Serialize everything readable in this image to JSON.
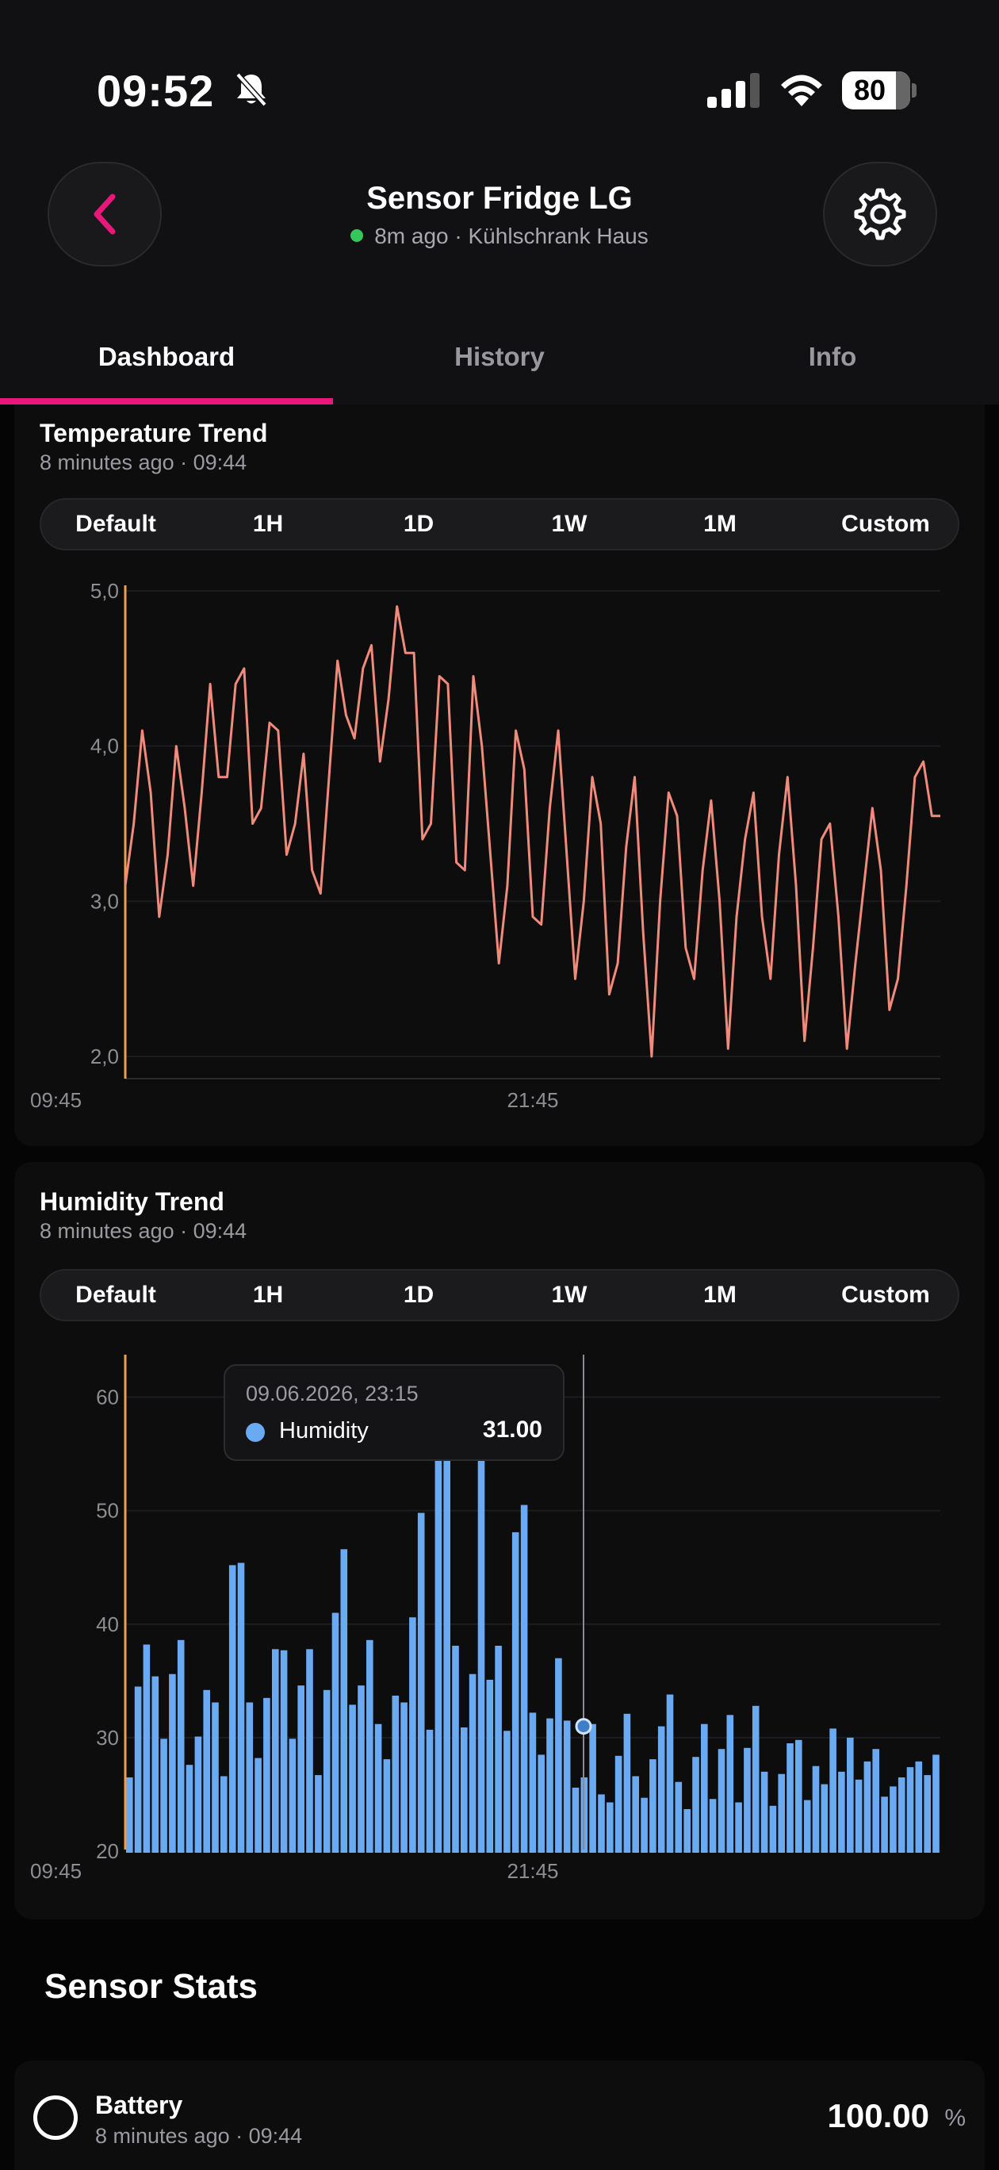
{
  "status_bar": {
    "time": "09:52",
    "battery": "80"
  },
  "header": {
    "title": "Sensor Fridge LG",
    "subtitle": "8m ago · Kühlschrank Haus",
    "online_color": "#35c75a"
  },
  "tabs": [
    {
      "label": "Dashboard",
      "active": true
    },
    {
      "label": "History",
      "active": false
    },
    {
      "label": "Info",
      "active": false
    }
  ],
  "range_options": [
    "Default",
    "1H",
    "1D",
    "1W",
    "1M",
    "Custom"
  ],
  "temperature": {
    "title": "Temperature Trend",
    "subtitle": "8 minutes ago · 09:44"
  },
  "humidity": {
    "title": "Humidity Trend",
    "subtitle": "8 minutes ago · 09:44",
    "tooltip": {
      "date": "09.06.2026, 23:15",
      "series": "Humidity",
      "value": "31.00"
    }
  },
  "stats": {
    "section_title": "Sensor Stats",
    "battery": {
      "label": "Battery",
      "subtitle": "8 minutes ago · 09:44",
      "value": "100.00",
      "unit": "%"
    }
  },
  "chart_data": [
    {
      "type": "line",
      "color": "#f08a7a",
      "yticks": [
        "5,0",
        "4,0",
        "3,0",
        "2,0"
      ],
      "ylim": [
        2.0,
        5.0
      ],
      "xticks": [
        "09:45",
        "21:45"
      ],
      "values": [
        3.1,
        3.5,
        4.1,
        3.7,
        2.9,
        3.3,
        4.0,
        3.6,
        3.1,
        3.7,
        4.4,
        3.8,
        3.8,
        4.4,
        4.5,
        3.5,
        3.6,
        4.15,
        4.1,
        3.3,
        3.5,
        3.95,
        3.2,
        3.05,
        3.8,
        4.55,
        4.2,
        4.05,
        4.5,
        4.65,
        3.9,
        4.3,
        4.9,
        4.6,
        4.6,
        3.4,
        3.5,
        4.45,
        4.4,
        3.25,
        3.2,
        4.45,
        4.0,
        3.3,
        2.6,
        3.1,
        4.1,
        3.85,
        2.9,
        2.85,
        3.6,
        4.1,
        3.3,
        2.5,
        3.0,
        3.8,
        3.5,
        2.4,
        2.6,
        3.35,
        3.8,
        2.8,
        2.0,
        3.0,
        3.7,
        3.55,
        2.7,
        2.5,
        3.2,
        3.65,
        3.0,
        2.05,
        2.9,
        3.4,
        3.7,
        2.9,
        2.5,
        3.3,
        3.8,
        3.1,
        2.1,
        2.7,
        3.4,
        3.5,
        2.9,
        2.05,
        2.6,
        3.1,
        3.6,
        3.2,
        2.3,
        2.5,
        3.1,
        3.8,
        3.9,
        3.55,
        3.55
      ]
    },
    {
      "type": "bar",
      "color": "#6aaaf2",
      "yticks": [
        "60",
        "50",
        "40",
        "30",
        "20"
      ],
      "ylim": [
        20,
        65
      ],
      "xticks": [
        "09:45",
        "21:45"
      ],
      "values": [
        26.5,
        34.5,
        38.2,
        35.4,
        29.9,
        35.6,
        38.6,
        27.6,
        30.1,
        34.2,
        33.1,
        26.6,
        45.2,
        45.4,
        33.1,
        28.2,
        33.5,
        37.8,
        37.7,
        29.9,
        34.6,
        37.8,
        26.7,
        34.2,
        41.0,
        46.6,
        32.9,
        34.6,
        38.6,
        31.2,
        28.1,
        33.7,
        33.1,
        40.6,
        49.8,
        30.7,
        55.0,
        55.5,
        38.1,
        30.9,
        35.6,
        55.0,
        35.1,
        38.1,
        30.6,
        48.1,
        50.5,
        32.2,
        28.5,
        31.7,
        37.0,
        31.5,
        25.6,
        26.5,
        31.2,
        25.0,
        24.3,
        28.4,
        32.1,
        26.6,
        24.7,
        28.1,
        31.0,
        33.8,
        26.1,
        23.7,
        28.3,
        31.2,
        24.6,
        29.0,
        32.0,
        24.3,
        29.1,
        32.8,
        27.0,
        24.0,
        26.8,
        29.5,
        29.8,
        24.5,
        27.5,
        25.9,
        30.8,
        27.0,
        30.0,
        26.3,
        27.9,
        29.0,
        24.8,
        25.7,
        26.5,
        27.4,
        27.9,
        26.7,
        28.5
      ]
    }
  ]
}
